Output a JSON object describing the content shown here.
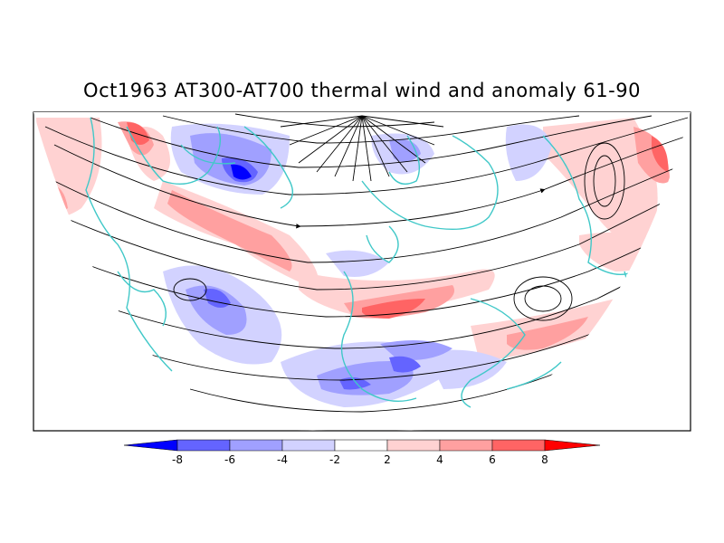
{
  "title": "Oct1963 AT300-AT700 thermal wind and anomaly 61-90",
  "colorbar": {
    "labels": [
      "-8",
      "-6",
      "-4",
      "-2",
      "2",
      "4",
      "6",
      "8"
    ],
    "colors": [
      "#0000ff",
      "#6464ff",
      "#a0a0ff",
      "#d2d2ff",
      "#ffffff",
      "#ffd2d2",
      "#ffa0a0",
      "#ff6464",
      "#ff0000"
    ],
    "coastline_color": "#40c8c8"
  }
}
